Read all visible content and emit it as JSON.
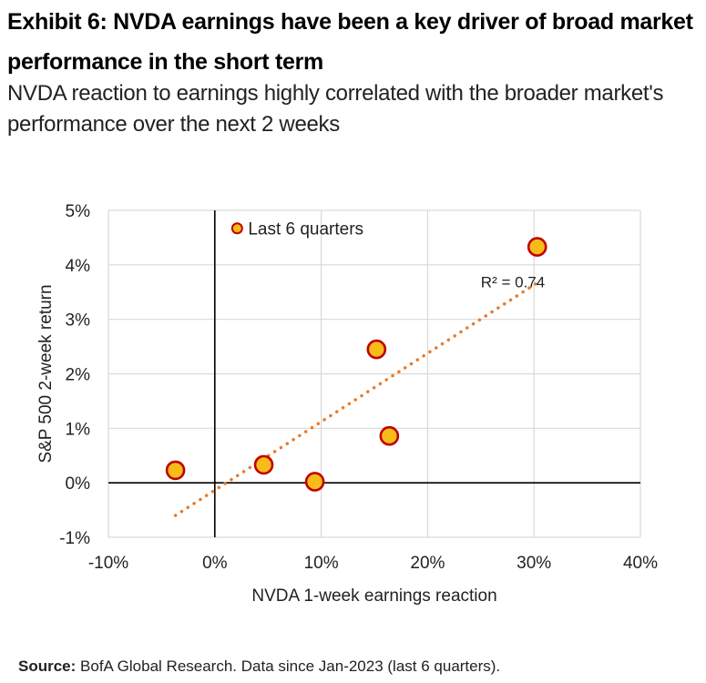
{
  "title": "Exhibit 6: NVDA earnings have been a key driver of broad market performance in the short term",
  "subtitle": "NVDA reaction to earnings highly correlated with the broader market's performance over the next 2 weeks",
  "source": {
    "label": "Source:",
    "text": "BofA Global Research. Data since Jan-2023 (last 6 quarters)."
  },
  "colors": {
    "marker_fill": "#F7BC1A",
    "marker_stroke": "#C00000",
    "trendline": "#E87B2A",
    "grid": "#D9D9D9",
    "axis": "#000000"
  },
  "chart_data": {
    "type": "scatter",
    "xlabel": "NVDA 1-week earnings reaction",
    "ylabel": "S&P 500 2-week return",
    "xlim": [
      -10,
      40
    ],
    "ylim": [
      -1,
      5
    ],
    "xticks": [
      -10,
      0,
      10,
      20,
      30,
      40
    ],
    "yticks": [
      -1,
      0,
      1,
      2,
      3,
      4,
      5
    ],
    "xtick_labels": [
      "-10%",
      "0%",
      "10%",
      "20%",
      "30%",
      "40%"
    ],
    "ytick_labels": [
      "-1%",
      "0%",
      "1%",
      "2%",
      "3%",
      "4%",
      "5%"
    ],
    "grid": true,
    "legend": {
      "position": "top-left",
      "entries": [
        "Last 6 quarters"
      ]
    },
    "series": [
      {
        "name": "Last 6 quarters",
        "points": [
          {
            "x": -3.7,
            "y": 0.23
          },
          {
            "x": 4.6,
            "y": 0.33
          },
          {
            "x": 9.4,
            "y": 0.02
          },
          {
            "x": 15.2,
            "y": 2.45
          },
          {
            "x": 16.4,
            "y": 0.86
          },
          {
            "x": 30.3,
            "y": 4.33
          }
        ]
      }
    ],
    "trendline": {
      "type": "linear",
      "start": {
        "x": -3.7,
        "y": -0.6
      },
      "end": {
        "x": 30.3,
        "y": 3.67
      },
      "r_squared_label": "R² = 0.74",
      "label_anchor": {
        "x": 25.0,
        "y": 3.67
      }
    }
  }
}
